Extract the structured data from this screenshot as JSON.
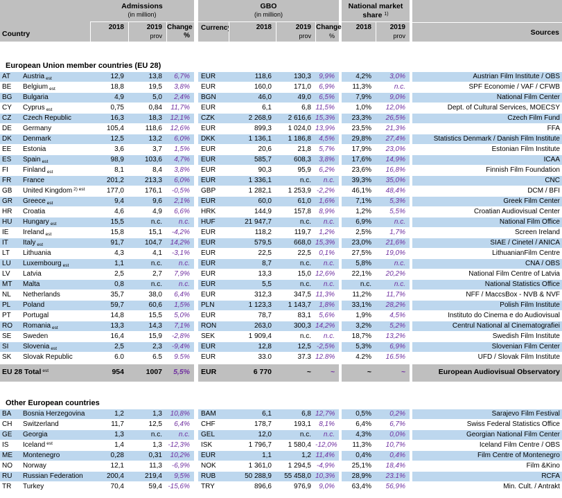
{
  "colors": {
    "header_bg": "#BFBFBF",
    "row_stripe_blue": "#BDD7EE",
    "change_text_purple": "#7030A0"
  },
  "header": {
    "country": "Country",
    "admissions": "Admissions",
    "in_million": "(in million)",
    "gbo": "GBO",
    "nms_line1": "National market",
    "nms_line2": "share",
    "nms_footnote": "1)",
    "currency": "Currency",
    "y2018": "2018",
    "y2019": "2019",
    "prov": "prov",
    "change_pct": "Change %",
    "change": "Change",
    "pct": "%",
    "sources": "Sources"
  },
  "sections": [
    {
      "title": "European Union member countries (EU 28)",
      "rows": [
        {
          "code": "AT",
          "name": "Austria",
          "est": "est",
          "adm2018": "12,9",
          "adm2019": "13,8",
          "admchg": "6,7%",
          "cur": "EUR",
          "gbo2018": "118,6",
          "gbo2019": "130,3",
          "gbochg": "9,9%",
          "nms2018": "4,2%",
          "nms2019": "3,0%",
          "source": "Austrian Film Institute / OBS"
        },
        {
          "code": "BE",
          "name": "Belgium",
          "est": "est",
          "adm2018": "18,8",
          "adm2019": "19,5",
          "admchg": "3,8%",
          "cur": "EUR",
          "gbo2018": "160,0",
          "gbo2019": "171,0",
          "gbochg": "6,9%",
          "nms2018": "11,3%",
          "nms2019": "n.c.",
          "source": "SPF Economie / VAF / CFWB"
        },
        {
          "code": "BG",
          "name": "Bulgaria",
          "adm2018": "4,9",
          "adm2019": "5,0",
          "admchg": "2,4%",
          "cur": "BGN",
          "gbo2018": "46,0",
          "gbo2019": "49,0",
          "gbochg": "6,5%",
          "nms2018": "7,9%",
          "nms2019": "9,0%",
          "source": "National Film Center"
        },
        {
          "code": "CY",
          "name": "Cyprus",
          "est": "est",
          "adm2018": "0,75",
          "adm2019": "0,84",
          "admchg": "11,7%",
          "cur": "EUR",
          "gbo2018": "6,1",
          "gbo2019": "6,8",
          "gbochg": "11,5%",
          "nms2018": "1,0%",
          "nms2019": "12,0%",
          "source": "Dept. of Cultural Services, MOECSY"
        },
        {
          "code": "CZ",
          "name": "Czech Republic",
          "adm2018": "16,3",
          "adm2019": "18,3",
          "admchg": "12,1%",
          "cur": "CZK",
          "gbo2018": "2 268,9",
          "gbo2019": "2 616,6",
          "gbochg": "15,3%",
          "nms2018": "23,3%",
          "nms2019": "26,5%",
          "source": "Czech Film Fund"
        },
        {
          "code": "DE",
          "name": "Germany",
          "adm2018": "105,4",
          "adm2019": "118,6",
          "admchg": "12,6%",
          "cur": "EUR",
          "gbo2018": "899,3",
          "gbo2019": "1 024,0",
          "gbochg": "13,9%",
          "nms2018": "23,5%",
          "nms2019": "21,3%",
          "source": "FFA"
        },
        {
          "code": "DK",
          "name": "Denmark",
          "adm2018": "12,5",
          "adm2019": "13,2",
          "admchg": "6,0%",
          "cur": "DKK",
          "gbo2018": "1 136,1",
          "gbo2019": "1 186,8",
          "gbochg": "4,5%",
          "nms2018": "29,8%",
          "nms2019": "27,4%",
          "source": "Statistics Denmark / Danish Film Institute"
        },
        {
          "code": "EE",
          "name": "Estonia",
          "adm2018": "3,6",
          "adm2019": "3,7",
          "admchg": "1,5%",
          "cur": "EUR",
          "gbo2018": "20,6",
          "gbo2019": "21,8",
          "gbochg": "5,7%",
          "nms2018": "17,9%",
          "nms2019": "23,0%",
          "source": "Estonian Film Institute"
        },
        {
          "code": "ES",
          "name": "Spain",
          "est": "est",
          "adm2018": "98,9",
          "adm2019": "103,6",
          "admchg": "4,7%",
          "cur": "EUR",
          "gbo2018": "585,7",
          "gbo2019": "608,3",
          "gbochg": "3,8%",
          "nms2018": "17,6%",
          "nms2019": "14,9%",
          "source": "ICAA"
        },
        {
          "code": "FI",
          "name": "Finland",
          "est": "est",
          "adm2018": "8,1",
          "adm2019": "8,4",
          "admchg": "3,8%",
          "cur": "EUR",
          "gbo2018": "90,3",
          "gbo2019": "95,9",
          "gbochg": "6,2%",
          "nms2018": "23,6%",
          "nms2019": "16,8%",
          "source": "Finnish Film Foundation"
        },
        {
          "code": "FR",
          "name": "France",
          "adm2018": "201,2",
          "adm2019": "213,3",
          "admchg": "6,0%",
          "cur": "EUR",
          "gbo2018": "1 336,1",
          "gbo2019": "n.c.",
          "gbochg": "n.c.",
          "nms2018": "39,3%",
          "nms2019": "35,0%",
          "source": "CNC"
        },
        {
          "code": "GB",
          "name": "United Kingdom",
          "est": "2) est",
          "est_sup": true,
          "adm2018": "177,0",
          "adm2019": "176,1",
          "admchg": "-0,5%",
          "cur": "GBP",
          "gbo2018": "1 282,1",
          "gbo2019": "1 253,9",
          "gbochg": "-2,2%",
          "nms2018": "46,1%",
          "nms2019": "48,4%",
          "source": "DCM / BFI"
        },
        {
          "code": "GR",
          "name": "Greece",
          "est": "est",
          "adm2018": "9,4",
          "adm2019": "9,6",
          "admchg": "2,1%",
          "cur": "EUR",
          "gbo2018": "60,0",
          "gbo2019": "61,0",
          "gbochg": "1,6%",
          "nms2018": "7,1%",
          "nms2019": "5,3%",
          "source": "Greek Film Center"
        },
        {
          "code": "HR",
          "name": "Croatia",
          "adm2018": "4,6",
          "adm2019": "4,9",
          "admchg": "6,6%",
          "cur": "HRK",
          "gbo2018": "144,9",
          "gbo2019": "157,8",
          "gbochg": "8,9%",
          "nms2018": "1,2%",
          "nms2019": "5,5%",
          "source": "Croatian Audiovisual Center"
        },
        {
          "code": "HU",
          "name": "Hungary",
          "est": "est",
          "adm2018": "15,5",
          "adm2019": "n.c.",
          "admchg": "n.c.",
          "cur": "HUF",
          "gbo2018": "21 947,7",
          "gbo2019": "n.c.",
          "gbochg": "n.c.",
          "nms2018": "6,9%",
          "nms2019": "n.c.",
          "source": "National Film Office"
        },
        {
          "code": "IE",
          "name": "Ireland",
          "est": "est",
          "adm2018": "15,8",
          "adm2019": "15,1",
          "admchg": "-4,2%",
          "cur": "EUR",
          "gbo2018": "118,2",
          "gbo2019": "119,7",
          "gbochg": "1,2%",
          "nms2018": "2,5%",
          "nms2019": "1,7%",
          "source": "Screen Ireland"
        },
        {
          "code": "IT",
          "name": "Italy",
          "est": "est",
          "adm2018": "91,7",
          "adm2019": "104,7",
          "admchg": "14,2%",
          "cur": "EUR",
          "gbo2018": "579,5",
          "gbo2019": "668,0",
          "gbochg": "15,3%",
          "nms2018": "23,0%",
          "nms2019": "21,6%",
          "source": "SIAE / Cinetel / ANICA"
        },
        {
          "code": "LT",
          "name": "Lithuania",
          "adm2018": "4,3",
          "adm2019": "4,1",
          "admchg": "-3,1%",
          "cur": "EUR",
          "gbo2018": "22,5",
          "gbo2019": "22,5",
          "gbochg": "0,1%",
          "nms2018": "27,5%",
          "nms2019": "19,0%",
          "source": "LithuanianFilm Centre"
        },
        {
          "code": "LU",
          "name": "Luxembourg",
          "est": "est",
          "adm2018": "1,1",
          "adm2019": "n.c.",
          "admchg": "n.c.",
          "cur": "EUR",
          "gbo2018": "8,7",
          "gbo2019": "n.c.",
          "gbochg": "n.c.",
          "nms2018": "5,8%",
          "nms2019": "n.c.",
          "source": "CNA / OBS"
        },
        {
          "code": "LV",
          "name": "Latvia",
          "adm2018": "2,5",
          "adm2019": "2,7",
          "admchg": "7,9%",
          "cur": "EUR",
          "gbo2018": "13,3",
          "gbo2019": "15,0",
          "gbochg": "12,6%",
          "nms2018": "22,1%",
          "nms2019": "20,2%",
          "source": "National Film Centre of Latvia"
        },
        {
          "code": "MT",
          "name": "Malta",
          "adm2018": "0,8",
          "adm2019": "n.c.",
          "admchg": "n.c.",
          "cur": "EUR",
          "gbo2018": "5,5",
          "gbo2019": "n.c.",
          "gbochg": "n.c.",
          "nms2018": "n.c.",
          "nms2019": "n.c.",
          "source": "National Statistics Office"
        },
        {
          "code": "NL",
          "name": "Netherlands",
          "adm2018": "35,7",
          "adm2019": "38,0",
          "admchg": "6,4%",
          "cur": "EUR",
          "gbo2018": "312,3",
          "gbo2019": "347,5",
          "gbochg": "11,3%",
          "nms2018": "11,2%",
          "nms2019": "11,7%",
          "source": "NFF / MaccsBox - NVB & NVF"
        },
        {
          "code": "PL",
          "name": "Poland",
          "adm2018": "59,7",
          "adm2019": "60,6",
          "admchg": "1,5%",
          "cur": "PLN",
          "gbo2018": "1 123,3",
          "gbo2019": "1 143,7",
          "gbochg": "1,8%",
          "nms2018": "33,1%",
          "nms2019": "28,2%",
          "source": "Polish Film Institute"
        },
        {
          "code": "PT",
          "name": "Portugal",
          "adm2018": "14,8",
          "adm2019": "15,5",
          "admchg": "5,0%",
          "cur": "EUR",
          "gbo2018": "78,7",
          "gbo2019": "83,1",
          "gbochg": "5,6%",
          "nms2018": "1,9%",
          "nms2019": "4,5%",
          "source": "Instituto do Cinema e do Audiovisual"
        },
        {
          "code": "RO",
          "name": "Romania",
          "est": "est",
          "adm2018": "13,3",
          "adm2019": "14,3",
          "admchg": "7,1%",
          "cur": "RON",
          "gbo2018": "263,0",
          "gbo2019": "300,3",
          "gbochg": "14,2%",
          "nms2018": "3,2%",
          "nms2019": "5,2%",
          "source": "Centrul National al Cinematografiei"
        },
        {
          "code": "SE",
          "name": "Sweden",
          "adm2018": "16,4",
          "adm2019": "15,9",
          "admchg": "-2,8%",
          "cur": "SEK",
          "gbo2018": "1 909,4",
          "gbo2019": "n.c.",
          "gbochg": "n.c.",
          "nms2018": "18,7%",
          "nms2019": "13,2%",
          "source": "Swedish Film Institute"
        },
        {
          "code": "SI",
          "name": "Slovenia",
          "est": "est",
          "adm2018": "2,5",
          "adm2019": "2,3",
          "admchg": "-9,4%",
          "cur": "EUR",
          "gbo2018": "12,8",
          "gbo2019": "12,5",
          "gbochg": "-2,5%",
          "nms2018": "5,3%",
          "nms2019": "6,9%",
          "source": "Slovenian Film Center"
        },
        {
          "code": "SK",
          "name": "Slovak Republic",
          "adm2018": "6.0",
          "adm2019": "6.5",
          "admchg": "9.5%",
          "cur": "EUR",
          "gbo2018": "33.0",
          "gbo2019": "37.3",
          "gbochg": "12.8%",
          "nms2018": "4.2%",
          "nms2019": "16.5%",
          "source": "UFD / Slovak Film Institute"
        }
      ]
    },
    {
      "title": "Other European countries",
      "rows": [
        {
          "code": "BA",
          "name": "Bosnia Herzegovina",
          "adm2018": "1,2",
          "adm2019": "1,3",
          "admchg": "10,8%",
          "cur": "BAM",
          "gbo2018": "6,1",
          "gbo2019": "6,8",
          "gbochg": "12,7%",
          "nms2018": "0,5%",
          "nms2019": "0,2%",
          "source": "Sarajevo Film Festival"
        },
        {
          "code": "CH",
          "name": "Switzerland",
          "adm2018": "11,7",
          "adm2019": "12,5",
          "admchg": "6,4%",
          "cur": "CHF",
          "gbo2018": "178,7",
          "gbo2019": "193,1",
          "gbochg": "8,1%",
          "nms2018": "6,4%",
          "nms2019": "6,7%",
          "source": "Swiss Federal Statistics Office"
        },
        {
          "code": "GE",
          "name": "Georgia",
          "adm2018": "1,3",
          "adm2019": "n.c.",
          "admchg": "n.c.",
          "cur": "GEL",
          "gbo2018": "12,0",
          "gbo2019": "n.c.",
          "gbochg": "n.c.",
          "nms2018": "4,3%",
          "nms2019": "0,0%",
          "source": "Georgian National Film Center"
        },
        {
          "code": "IS",
          "name": "Iceland",
          "est": "est",
          "est_sup": true,
          "adm2018": "1,4",
          "adm2019": "1,3",
          "admchg": "-12,3%",
          "cur": "ISK",
          "gbo2018": "1 796,7",
          "gbo2019": "1 580,4",
          "gbochg": "-12,0%",
          "nms2018": "11,3%",
          "nms2019": "10,7%",
          "source": "Iceland Film Centre / OBS"
        },
        {
          "code": "ME",
          "name": "Montenegro",
          "adm2018": "0,28",
          "adm2019": "0,31",
          "admchg": "10,2%",
          "cur": "EUR",
          "gbo2018": "1,1",
          "gbo2019": "1,2",
          "gbochg": "11,4%",
          "nms2018": "0,4%",
          "nms2019": "0,4%",
          "source": "Film Centre of Montenegro"
        },
        {
          "code": "NO",
          "name": "Norway",
          "adm2018": "12,1",
          "adm2019": "11,3",
          "admchg": "-6,9%",
          "cur": "NOK",
          "gbo2018": "1 361,0",
          "gbo2019": "1 294,5",
          "gbochg": "-4,9%",
          "nms2018": "25,1%",
          "nms2019": "18,4%",
          "source": "Film &Kino"
        },
        {
          "code": "RU",
          "name": "Russian Federation",
          "adm2018": "200,4",
          "adm2019": "219,4",
          "admchg": "9,5%",
          "cur": "RUB",
          "gbo2018": "50 288,9",
          "gbo2019": "55 458,0",
          "gbochg": "10,3%",
          "nms2018": "28,9%",
          "nms2019": "23.1%",
          "source": "RCFA"
        },
        {
          "code": "TR",
          "name": "Turkey",
          "adm2018": "70,4",
          "adm2019": "59,4",
          "admchg": "-15,6%",
          "cur": "TRY",
          "gbo2018": "896,6",
          "gbo2019": "976,9",
          "gbochg": "9,0%",
          "nms2018": "63,4%",
          "nms2019": "56,9%",
          "source": "Min. Cult. / Antrakt"
        }
      ]
    }
  ],
  "total_row": {
    "label": "EU 28 Total",
    "est": "est",
    "est_sup": true,
    "adm2018": "954",
    "adm2019": "1007",
    "admchg": "5,5%",
    "cur": "EUR",
    "gbo2018": "6 770",
    "gbo2019": "~",
    "gbochg": "~",
    "nms2018": "~",
    "nms2019": "~",
    "source": "European Audiovisual Observatory"
  }
}
